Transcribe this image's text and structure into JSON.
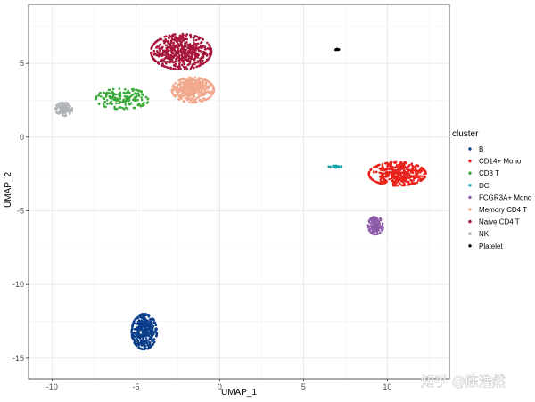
{
  "watermark": "知乎 @陈浩然",
  "chart_data": {
    "type": "scatter",
    "title": "",
    "xlabel": "UMAP_1",
    "ylabel": "UMAP_2",
    "xlim": [
      -11.4,
      13.7
    ],
    "ylim": [
      -16.4,
      9.0
    ],
    "xticks": [
      -10,
      -5,
      0,
      5,
      10
    ],
    "yticks": [
      5,
      0,
      -5,
      -10,
      -15
    ],
    "grid": true,
    "legend": {
      "title": "cluster",
      "position": "right"
    },
    "series": [
      {
        "name": "B",
        "color": "#0b3e8a",
        "points": 380,
        "center": [
          -4.5,
          -13.2
        ],
        "spread": [
          0.75,
          1.2
        ]
      },
      {
        "name": "CD14+ Mono",
        "color": "#e8231c",
        "points": 420,
        "center": [
          10.6,
          -2.5
        ],
        "spread": [
          1.7,
          0.8
        ]
      },
      {
        "name": "CD8 T",
        "color": "#3aab3a",
        "points": 170,
        "center": [
          -5.8,
          2.6
        ],
        "spread": [
          1.6,
          0.7
        ]
      },
      {
        "name": "DC",
        "color": "#15a3a8",
        "points": 22,
        "center": [
          6.9,
          -2.0
        ],
        "spread": [
          0.4,
          0.08
        ]
      },
      {
        "name": "FCGR3A+ Mono",
        "color": "#8b5aa6",
        "points": 130,
        "center": [
          9.3,
          -6.0
        ],
        "spread": [
          0.45,
          0.6
        ]
      },
      {
        "name": "Memory CD4 T",
        "color": "#f2a88c",
        "points": 400,
        "center": [
          -1.6,
          3.2
        ],
        "spread": [
          1.25,
          0.85
        ]
      },
      {
        "name": "Naive CD4 T",
        "color": "#a8163c",
        "points": 520,
        "center": [
          -2.3,
          5.8
        ],
        "spread": [
          1.8,
          1.2
        ]
      },
      {
        "name": "NK",
        "color": "#b0b4b8",
        "points": 100,
        "center": [
          -9.3,
          1.9
        ],
        "spread": [
          0.5,
          0.45
        ]
      },
      {
        "name": "Platelet",
        "color": "#000000",
        "points": 10,
        "center": [
          7.0,
          5.95
        ],
        "spread": [
          0.12,
          0.05
        ]
      }
    ]
  }
}
